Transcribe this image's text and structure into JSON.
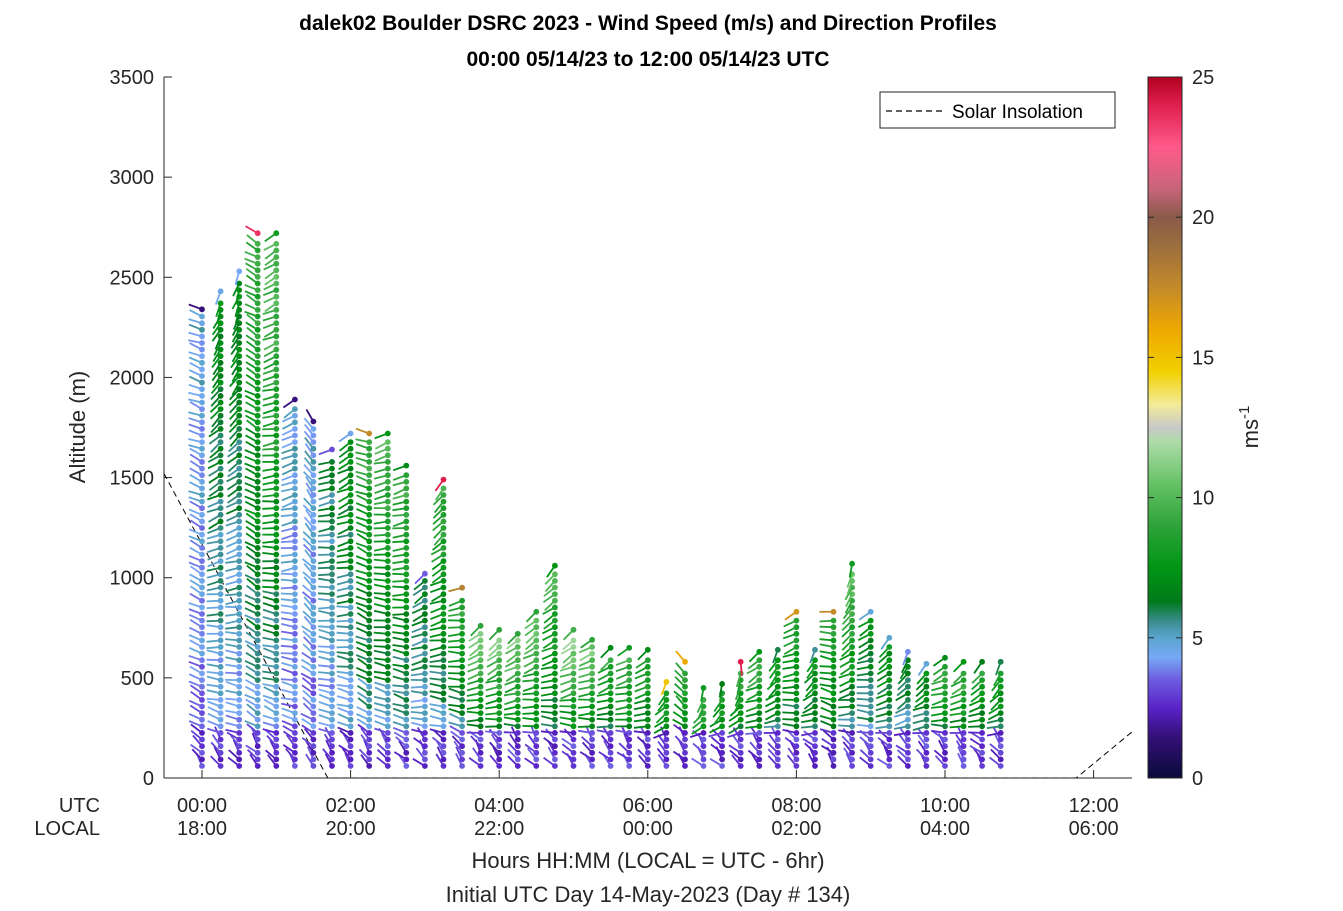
{
  "chart_data": {
    "type": "wind-barb-profile",
    "title": "dalek02 Boulder DSRC 2023 - Wind Speed (m/s) and Direction Profiles",
    "subtitle": "00:00 05/14/23 to 12:00 05/14/23  UTC",
    "ylabel": "Altitude (m)",
    "xlabel": "Hours HH:MM  (LOCAL = UTC - 6hr)",
    "xlabel2": "Initial UTC Day 14-May-2023 (Day # 134)",
    "ylim": [
      0,
      3500
    ],
    "xlim_hours": [
      -0.5,
      12.5
    ],
    "yticks": [
      "0",
      "500",
      "1000",
      "1500",
      "2000",
      "2500",
      "3000",
      "3500"
    ],
    "xaxis_row_labels": {
      "utc": "UTC",
      "local": "LOCAL"
    },
    "xticks_utc": [
      "00:00",
      "02:00",
      "04:00",
      "06:00",
      "08:00",
      "10:00",
      "12:00"
    ],
    "xticks_local": [
      "18:00",
      "20:00",
      "22:00",
      "00:00",
      "02:00",
      "04:00",
      "06:00"
    ],
    "legend": {
      "label": "Solar Insolation",
      "style": "dashed",
      "placement": "top-right"
    },
    "colorbar": {
      "label": "ms-1",
      "label_main": "ms",
      "label_sup": "-1",
      "range": [
        0,
        25
      ],
      "ticks": [
        "0",
        "5",
        "10",
        "15",
        "20",
        "25"
      ]
    },
    "solar_insolation": [
      {
        "hour": -0.5,
        "alt": 1520
      },
      {
        "hour": 1.7,
        "alt": 0
      },
      {
        "hour": 11.75,
        "alt": 0
      },
      {
        "hour": 12.5,
        "alt": 230
      }
    ],
    "profiles": [
      {
        "hour": 0.0,
        "top": 2340,
        "top_speed": 1.5,
        "top_dir": 290
      },
      {
        "hour": 0.25,
        "top": 2430,
        "top_speed": 4.5,
        "top_dir": 200
      },
      {
        "hour": 0.5,
        "top": 2530,
        "top_speed": 4.3,
        "top_dir": 195
      },
      {
        "hour": 0.75,
        "top": 2720,
        "top_speed": 23.5,
        "top_dir": 300
      },
      {
        "hour": 1.0,
        "top": 2720,
        "top_speed": 8.0,
        "top_dir": 235
      },
      {
        "hour": 1.25,
        "top": 1890,
        "top_speed": 1.6,
        "top_dir": 235
      },
      {
        "hour": 1.5,
        "top": 1780,
        "top_speed": 1.5,
        "top_dir": 330
      },
      {
        "hour": 1.75,
        "top": 1640,
        "top_speed": 3.2,
        "top_dir": 250
      },
      {
        "hour": 2.0,
        "top": 1720,
        "top_speed": 4.5,
        "top_dir": 235
      },
      {
        "hour": 2.25,
        "top": 1720,
        "top_speed": 17.5,
        "top_dir": 290
      },
      {
        "hour": 2.5,
        "top": 1720,
        "top_speed": 7.5,
        "top_dir": 250
      },
      {
        "hour": 2.75,
        "top": 1560,
        "top_speed": 7.0,
        "top_dir": 250
      },
      {
        "hour": 3.0,
        "top": 1020,
        "top_speed": 3.5,
        "top_dir": 225
      },
      {
        "hour": 3.25,
        "top": 1490,
        "top_speed": 24.0,
        "top_dir": 215
      },
      {
        "hour": 3.5,
        "top": 950,
        "top_speed": 18.0,
        "top_dir": 255
      },
      {
        "hour": 3.75,
        "top": 760,
        "top_speed": 9.0,
        "top_dir": 225
      },
      {
        "hour": 4.0,
        "top": 740,
        "top_speed": 9.0,
        "top_dir": 225
      },
      {
        "hour": 4.25,
        "top": 720,
        "top_speed": 9.0,
        "top_dir": 225
      },
      {
        "hour": 4.5,
        "top": 830,
        "top_speed": 9.0,
        "top_dir": 225
      },
      {
        "hour": 4.75,
        "top": 1060,
        "top_speed": 7.5,
        "top_dir": 215
      },
      {
        "hour": 5.0,
        "top": 740,
        "top_speed": 9.5,
        "top_dir": 225
      },
      {
        "hour": 5.25,
        "top": 690,
        "top_speed": 9.0,
        "top_dir": 235
      },
      {
        "hour": 5.5,
        "top": 650,
        "top_speed": 7.0,
        "top_dir": 225
      },
      {
        "hour": 5.75,
        "top": 650,
        "top_speed": 8.0,
        "top_dir": 235
      },
      {
        "hour": 6.0,
        "top": 640,
        "top_speed": 7.0,
        "top_dir": 225
      },
      {
        "hour": 6.25,
        "top": 480,
        "top_speed": 15.0,
        "top_dir": 200
      },
      {
        "hour": 6.5,
        "top": 580,
        "top_speed": 16.0,
        "top_dir": 320
      },
      {
        "hour": 6.75,
        "top": 450,
        "top_speed": 8.0,
        "top_dir": 190
      },
      {
        "hour": 7.0,
        "top": 470,
        "top_speed": 6.5,
        "top_dir": 190
      },
      {
        "hour": 7.25,
        "top": 580,
        "top_speed": 24.0,
        "top_dir": 175
      },
      {
        "hour": 7.5,
        "top": 630,
        "top_speed": 7.5,
        "top_dir": 225
      },
      {
        "hour": 7.75,
        "top": 640,
        "top_speed": 6.0,
        "top_dir": 200
      },
      {
        "hour": 8.0,
        "top": 830,
        "top_speed": 17.0,
        "top_dir": 235
      },
      {
        "hour": 8.25,
        "top": 640,
        "top_speed": 5.5,
        "top_dir": 200
      },
      {
        "hour": 8.5,
        "top": 830,
        "top_speed": 17.5,
        "top_dir": 270
      },
      {
        "hour": 8.75,
        "top": 1070,
        "top_speed": 8.0,
        "top_dir": 190
      },
      {
        "hour": 9.0,
        "top": 830,
        "top_speed": 4.8,
        "top_dir": 235
      },
      {
        "hour": 9.25,
        "top": 700,
        "top_speed": 5.0,
        "top_dir": 215
      },
      {
        "hour": 9.5,
        "top": 630,
        "top_speed": 4.0,
        "top_dir": 200
      },
      {
        "hour": 9.75,
        "top": 570,
        "top_speed": 4.8,
        "top_dir": 215
      },
      {
        "hour": 10.0,
        "top": 600,
        "top_speed": 7.0,
        "top_dir": 235
      },
      {
        "hour": 10.25,
        "top": 580,
        "top_speed": 7.5,
        "top_dir": 225
      },
      {
        "hour": 10.5,
        "top": 580,
        "top_speed": 6.5,
        "top_dir": 215
      },
      {
        "hour": 10.75,
        "top": 580,
        "top_speed": 6.0,
        "top_dir": 200
      }
    ]
  },
  "colors": {
    "colorbar_stops": [
      {
        "v": 0,
        "c": "#0a0a3a"
      },
      {
        "v": 1.5,
        "c": "#35107a"
      },
      {
        "v": 2.5,
        "c": "#5a22c8"
      },
      {
        "v": 3.5,
        "c": "#6e5ce0"
      },
      {
        "v": 4.3,
        "c": "#77a8f5"
      },
      {
        "v": 5.0,
        "c": "#5aa5cf"
      },
      {
        "v": 5.6,
        "c": "#3a8c8c"
      },
      {
        "v": 6.3,
        "c": "#007a1a"
      },
      {
        "v": 7.5,
        "c": "#009614"
      },
      {
        "v": 9.0,
        "c": "#2ea33a"
      },
      {
        "v": 10.5,
        "c": "#66c266"
      },
      {
        "v": 12.0,
        "c": "#aedcaa"
      },
      {
        "v": 12.5,
        "c": "#c8c8c8"
      },
      {
        "v": 13.3,
        "c": "#f3ec9a"
      },
      {
        "v": 14.5,
        "c": "#f2d000"
      },
      {
        "v": 16.0,
        "c": "#eea800"
      },
      {
        "v": 17.5,
        "c": "#c48a2a"
      },
      {
        "v": 19.0,
        "c": "#9b6e3d"
      },
      {
        "v": 20.0,
        "c": "#8a5a4a"
      },
      {
        "v": 21.0,
        "c": "#c7657a"
      },
      {
        "v": 22.5,
        "c": "#ff5a8a"
      },
      {
        "v": 24.0,
        "c": "#e01f4e"
      },
      {
        "v": 25.0,
        "c": "#b0001e"
      }
    ]
  }
}
